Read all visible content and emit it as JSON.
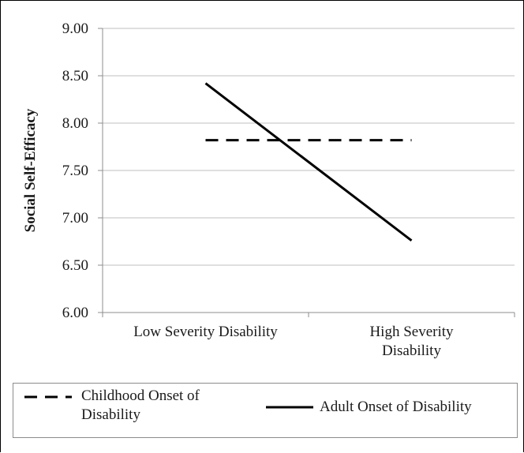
{
  "chart_data": {
    "type": "line",
    "title": "",
    "xlabel": "",
    "ylabel": "Social Self-Efficacy",
    "categories": [
      "Low Severity Disability",
      "High Severity Disability"
    ],
    "category_lines": [
      [
        "Low Severity Disability"
      ],
      [
        "High Severity",
        "Disability"
      ]
    ],
    "ylim": [
      6.0,
      9.0
    ],
    "yticks": [
      "6.00",
      "6.50",
      "7.00",
      "7.50",
      "8.00",
      "8.50",
      "9.00"
    ],
    "grid": true,
    "legend_position": "bottom",
    "series": [
      {
        "name": "Childhood Onset of Disability",
        "name_lines": [
          "Childhood Onset of",
          "Disability"
        ],
        "values": [
          7.82,
          7.82
        ],
        "style": "dashed",
        "color": "#000000"
      },
      {
        "name": "Adult Onset of Disability",
        "name_lines": [
          "Adult Onset of Disability"
        ],
        "values": [
          8.42,
          6.76
        ],
        "style": "solid",
        "color": "#000000"
      }
    ]
  },
  "colors": {
    "grid": "#bfbfbf",
    "axis": "#8c8c8c",
    "line": "#000000"
  }
}
